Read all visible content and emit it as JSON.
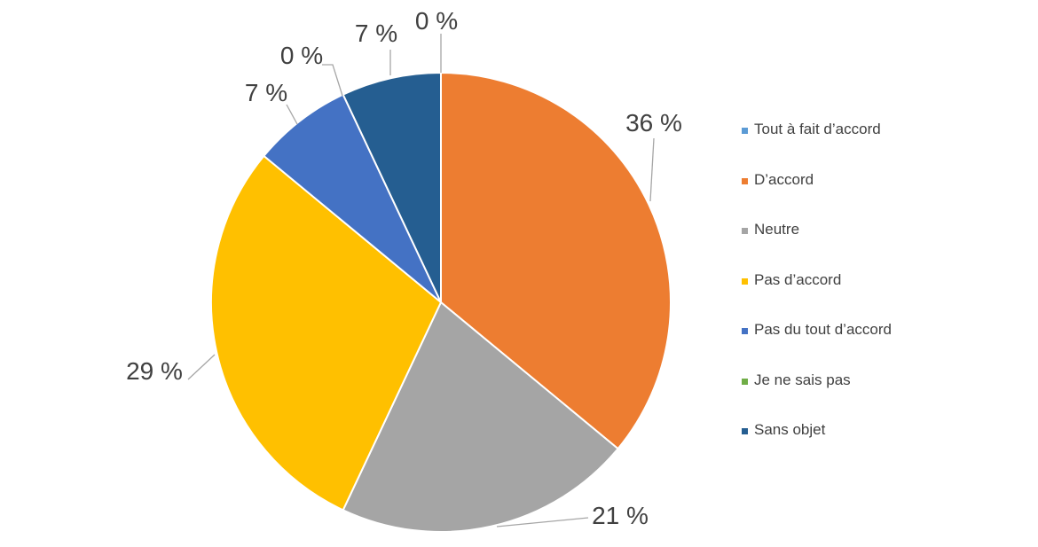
{
  "chart_data": {
    "type": "pie",
    "title": "",
    "legend_position": "right",
    "categories": [
      "Tout à fait d’accord",
      "D’accord",
      "Neutre",
      "Pas d’accord",
      "Pas du tout d’accord",
      "Je ne sais pas",
      "Sans objet"
    ],
    "values": [
      0,
      36,
      21,
      29,
      7,
      0,
      7
    ],
    "data_labels": [
      "0 %",
      "36 %",
      "21 %",
      "29 %",
      "7 %",
      "0 %",
      "7 %"
    ],
    "colors": [
      "#5b9bd5",
      "#ed7d31",
      "#a5a5a5",
      "#ffc000",
      "#4472c4",
      "#70ad47",
      "#255e91"
    ]
  }
}
